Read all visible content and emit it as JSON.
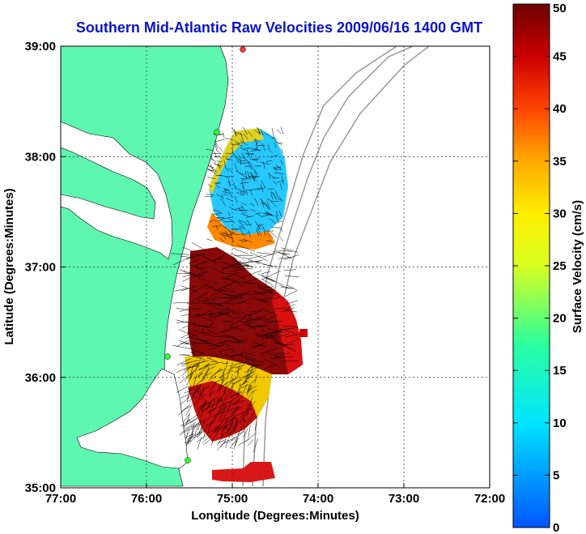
{
  "chart_data": {
    "type": "heatmap",
    "title": "Southern Mid-Atlantic Raw Velocities 2009/06/16 1400 GMT",
    "xlabel": "Longitude (Degrees:Minutes)",
    "ylabel": "Latitude (Degrees:Minutes)",
    "x_ticks": [
      "77:00",
      "76:00",
      "75:00",
      "74:00",
      "73:00",
      "72:00"
    ],
    "y_ticks": [
      "39:00",
      "38:00",
      "37:00",
      "36:00",
      "35:00"
    ],
    "xlim": [
      -77,
      -72
    ],
    "ylim": [
      35,
      39
    ],
    "grid": true,
    "colorbar": {
      "label": "Surface Velocity (cm/s)",
      "ticks": [
        "50",
        "45",
        "40",
        "35",
        "30",
        "25",
        "20",
        "15",
        "10",
        "5",
        "0"
      ],
      "range": [
        0,
        50
      ]
    },
    "velocity_regions": [
      {
        "name": "north",
        "lon_range": [
          -75.3,
          -74.4
        ],
        "lat_range": [
          37.2,
          38.2
        ],
        "speed_range_cms": [
          8,
          35
        ],
        "dominant_speed_cms": 12
      },
      {
        "name": "central",
        "lon_range": [
          -75.5,
          -74.4
        ],
        "lat_range": [
          36.0,
          37.2
        ],
        "speed_range_cms": [
          28,
          50
        ],
        "dominant_speed_cms": 48
      },
      {
        "name": "south",
        "lon_range": [
          -75.5,
          -74.7
        ],
        "lat_range": [
          35.4,
          36.2
        ],
        "speed_range_cms": [
          20,
          50
        ],
        "dominant_speed_cms": 45
      }
    ]
  }
}
